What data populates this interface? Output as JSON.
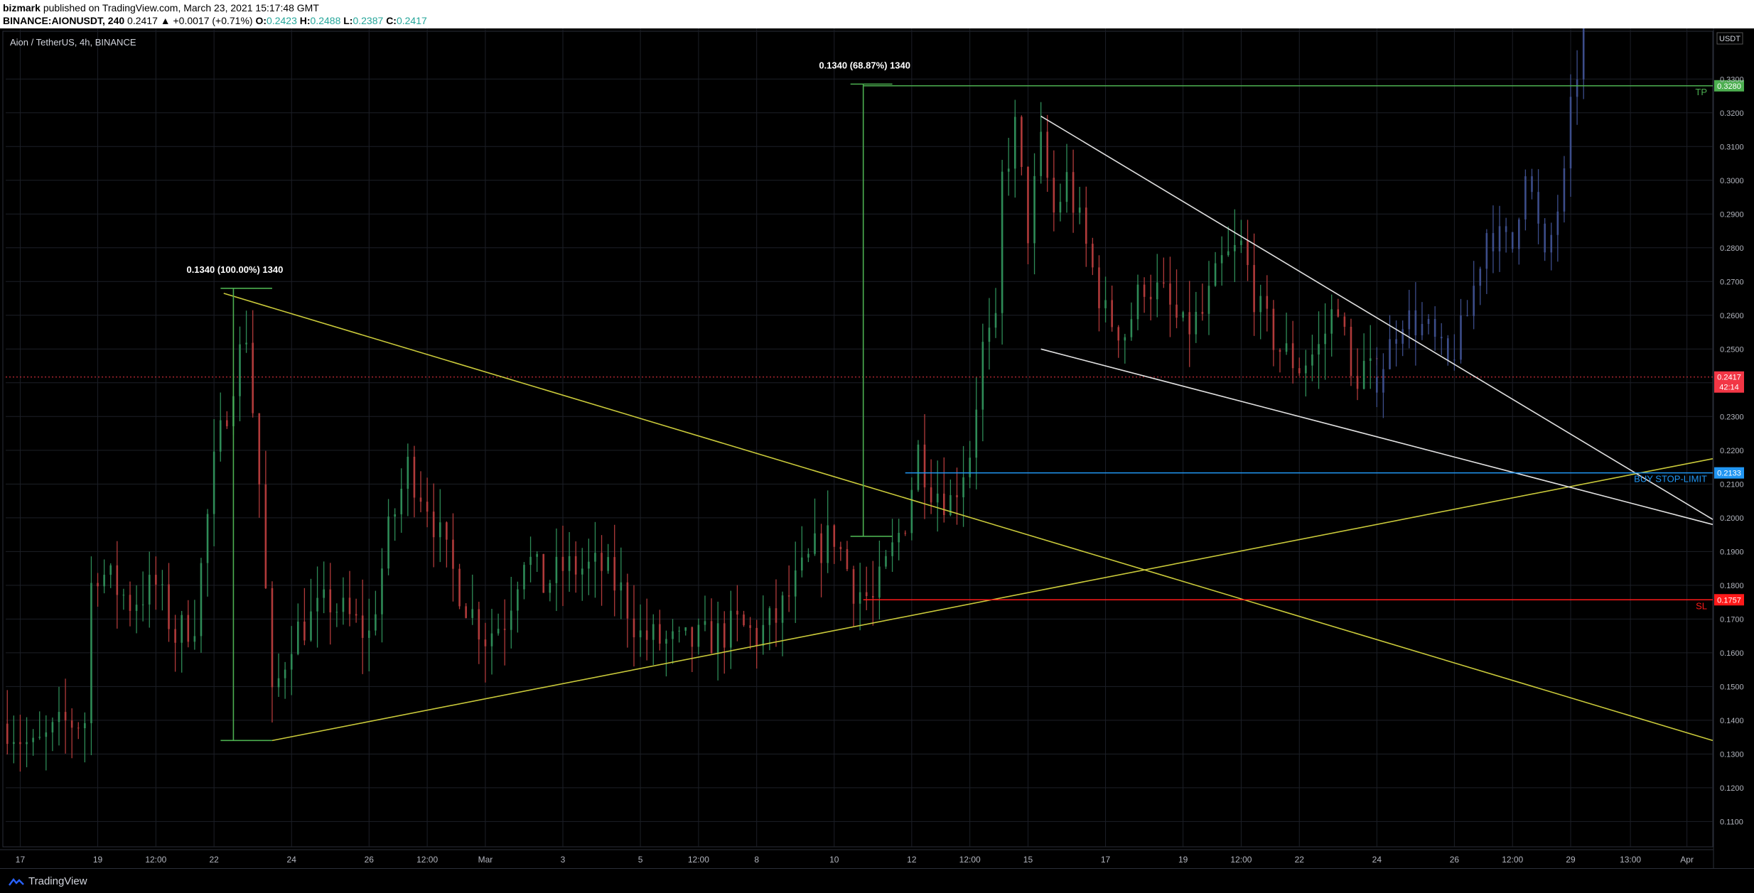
{
  "header": {
    "author": "bizmark",
    "published": "published on TradingView.com, March 23, 2021 15:17:48 GMT",
    "symbol": "BINANCE:AIONUSDT, 240",
    "change": "0.2417 ▲ +0.0017 (+0.71%)",
    "o_label": "O:",
    "o_value": "0.2423",
    "h_label": "H:",
    "h_value": "0.2488",
    "l_label": "L:",
    "l_value": "0.2387",
    "c_label": "C:",
    "c_value": "0.2417"
  },
  "footer": {
    "brand": "TradingView"
  },
  "chart_data": {
    "type": "candlestick",
    "title": "Aion / TetherUS, 4h, BINANCE",
    "currency": "USDT",
    "ylim": [
      0.1025,
      0.345
    ],
    "y_ticks": [
      "0.1100",
      "0.1200",
      "0.1300",
      "0.1400",
      "0.1500",
      "0.1600",
      "0.1700",
      "0.1800",
      "0.1900",
      "0.2000",
      "0.2100",
      "0.2200",
      "0.2300",
      "0.2400",
      "0.2500",
      "0.2600",
      "0.2700",
      "0.2800",
      "0.2900",
      "0.3000",
      "0.3100",
      "0.3200",
      "0.3300"
    ],
    "y_tick_values": [
      0.11,
      0.12,
      0.13,
      0.14,
      0.15,
      0.16,
      0.17,
      0.18,
      0.19,
      0.2,
      0.21,
      0.22,
      0.23,
      0.24,
      0.25,
      0.26,
      0.27,
      0.28,
      0.29,
      0.3,
      0.31,
      0.32,
      0.33
    ],
    "x_range": [
      "2021-02-16 15:00",
      "2021-04-01 16:00"
    ],
    "x_ticks": [
      {
        "label": "17",
        "t": "2021-02-17 00:00"
      },
      {
        "label": "19",
        "t": "2021-02-19 00:00"
      },
      {
        "label": "12:00",
        "t": "2021-02-20 12:00"
      },
      {
        "label": "22",
        "t": "2021-02-22 00:00"
      },
      {
        "label": "24",
        "t": "2021-02-24 00:00"
      },
      {
        "label": "26",
        "t": "2021-02-26 00:00"
      },
      {
        "label": "12:00",
        "t": "2021-02-27 12:00"
      },
      {
        "label": "Mar",
        "t": "2021-03-01 00:00"
      },
      {
        "label": "3",
        "t": "2021-03-03 00:00"
      },
      {
        "label": "5",
        "t": "2021-03-05 00:00"
      },
      {
        "label": "12:00",
        "t": "2021-03-06 12:00"
      },
      {
        "label": "8",
        "t": "2021-03-08 00:00"
      },
      {
        "label": "10",
        "t": "2021-03-10 00:00"
      },
      {
        "label": "12",
        "t": "2021-03-12 00:00"
      },
      {
        "label": "12:00",
        "t": "2021-03-13 12:00"
      },
      {
        "label": "15",
        "t": "2021-03-15 00:00"
      },
      {
        "label": "17",
        "t": "2021-03-17 00:00"
      },
      {
        "label": "19",
        "t": "2021-03-19 00:00"
      },
      {
        "label": "12:00",
        "t": "2021-03-20 12:00"
      },
      {
        "label": "22",
        "t": "2021-03-22 00:00"
      },
      {
        "label": "24",
        "t": "2021-03-24 00:00"
      },
      {
        "label": "26",
        "t": "2021-03-26 00:00"
      },
      {
        "label": "12:00",
        "t": "2021-03-27 12:00"
      },
      {
        "label": "29",
        "t": "2021-03-29 00:00"
      },
      {
        "label": "13:00",
        "t": "2021-03-30 13:00"
      },
      {
        "label": "Apr",
        "t": "2021-04-01 00:00"
      }
    ],
    "price_path": [
      [
        "2021-02-16 16:00",
        0.139
      ],
      [
        "2021-02-17 08:00",
        0.131
      ],
      [
        "2021-02-18 04:00",
        0.139
      ],
      [
        "2021-02-18 16:00",
        0.14
      ],
      [
        "2021-02-18 20:00",
        0.18
      ],
      [
        "2021-02-19 00:00",
        0.185
      ],
      [
        "2021-02-19 20:00",
        0.175
      ],
      [
        "2021-02-20 12:00",
        0.18
      ],
      [
        "2021-02-21 00:00",
        0.165
      ],
      [
        "2021-02-21 12:00",
        0.17
      ],
      [
        "2021-02-22 00:00",
        0.215
      ],
      [
        "2021-02-22 12:00",
        0.242
      ],
      [
        "2021-02-22 20:00",
        0.255
      ],
      [
        "2021-02-23 04:00",
        0.21
      ],
      [
        "2021-02-23 12:00",
        0.145
      ],
      [
        "2021-02-24 00:00",
        0.165
      ],
      [
        "2021-02-25 00:00",
        0.175
      ],
      [
        "2021-02-25 12:00",
        0.17
      ],
      [
        "2021-02-26 00:00",
        0.165
      ],
      [
        "2021-02-26 12:00",
        0.195
      ],
      [
        "2021-02-27 00:00",
        0.215
      ],
      [
        "2021-02-27 12:00",
        0.205
      ],
      [
        "2021-02-28 00:00",
        0.188
      ],
      [
        "2021-02-28 12:00",
        0.175
      ],
      [
        "2021-03-01 00:00",
        0.165
      ],
      [
        "2021-03-01 12:00",
        0.17
      ],
      [
        "2021-03-02 00:00",
        0.19
      ],
      [
        "2021-03-02 12:00",
        0.18
      ],
      [
        "2021-03-03 00:00",
        0.185
      ],
      [
        "2021-03-04 00:00",
        0.185
      ],
      [
        "2021-03-04 12:00",
        0.178
      ],
      [
        "2021-03-05 00:00",
        0.165
      ],
      [
        "2021-03-06 00:00",
        0.162
      ],
      [
        "2021-03-07 00:00",
        0.165
      ],
      [
        "2021-03-07 12:00",
        0.168
      ],
      [
        "2021-03-08 00:00",
        0.165
      ],
      [
        "2021-03-08 12:00",
        0.17
      ],
      [
        "2021-03-09 00:00",
        0.18
      ],
      [
        "2021-03-09 12:00",
        0.19
      ],
      [
        "2021-03-10 00:00",
        0.195
      ],
      [
        "2021-03-10 12:00",
        0.18
      ],
      [
        "2021-03-11 00:00",
        0.175
      ],
      [
        "2021-03-11 08:00",
        0.185
      ],
      [
        "2021-03-11 20:00",
        0.2
      ],
      [
        "2021-03-12 04:00",
        0.22
      ],
      [
        "2021-03-12 12:00",
        0.21
      ],
      [
        "2021-03-13 00:00",
        0.205
      ],
      [
        "2021-03-13 12:00",
        0.22
      ],
      [
        "2021-03-13 20:00",
        0.25
      ],
      [
        "2021-03-14 04:00",
        0.255
      ],
      [
        "2021-03-14 08:00",
        0.3
      ],
      [
        "2021-03-14 16:00",
        0.315
      ],
      [
        "2021-03-15 00:00",
        0.285
      ],
      [
        "2021-03-15 08:00",
        0.31
      ],
      [
        "2021-03-15 16:00",
        0.29
      ],
      [
        "2021-03-16 00:00",
        0.3
      ],
      [
        "2021-03-16 12:00",
        0.28
      ],
      [
        "2021-03-17 00:00",
        0.26
      ],
      [
        "2021-03-17 12:00",
        0.255
      ],
      [
        "2021-03-18 00:00",
        0.27
      ],
      [
        "2021-03-18 12:00",
        0.265
      ],
      [
        "2021-03-19 00:00",
        0.255
      ],
      [
        "2021-03-19 12:00",
        0.26
      ],
      [
        "2021-03-20 00:00",
        0.275
      ],
      [
        "2021-03-20 12:00",
        0.28
      ],
      [
        "2021-03-21 00:00",
        0.26
      ],
      [
        "2021-03-21 12:00",
        0.25
      ],
      [
        "2021-03-22 00:00",
        0.245
      ],
      [
        "2021-03-22 12:00",
        0.25
      ],
      [
        "2021-03-23 00:00",
        0.265
      ],
      [
        "2021-03-23 08:00",
        0.24
      ],
      [
        "2021-03-23 16:00",
        0.245
      ],
      [
        "2021-03-24 00:00",
        0.2417
      ]
    ],
    "projection": {
      "color": "#3c4d8a",
      "path": [
        [
          "2021-03-24 00:00",
          0.2417
        ],
        [
          "2021-03-24 16:00",
          0.26
        ],
        [
          "2021-03-25 08:00",
          0.255
        ],
        [
          "2021-03-25 20:00",
          0.245
        ],
        [
          "2021-03-26 08:00",
          0.26
        ],
        [
          "2021-03-26 20:00",
          0.285
        ],
        [
          "2021-03-27 12:00",
          0.28
        ],
        [
          "2021-03-27 20:00",
          0.305
        ],
        [
          "2021-03-28 08:00",
          0.275
        ],
        [
          "2021-03-28 20:00",
          0.3
        ],
        [
          "2021-03-29 00:00",
          0.32
        ],
        [
          "2021-03-29 08:00",
          0.345
        ]
      ]
    },
    "horizontal_levels": [
      {
        "name": "TP",
        "price": 0.328,
        "label": "0.3280",
        "text": "TP",
        "color": "#4caf50"
      },
      {
        "name": "buy-stop-limit",
        "price": 0.2133,
        "label": "0.2133",
        "text": "BUY STOP-LIMIT",
        "color": "#2196f3"
      },
      {
        "name": "SL",
        "price": 0.1757,
        "label": "0.1757",
        "text": "SL",
        "color": "#ff1a1a"
      }
    ],
    "current_price": {
      "price": 0.2417,
      "label": "0.2417",
      "countdown": "42:14",
      "color": "#f23645"
    },
    "trendlines": [
      {
        "name": "yellow-upper",
        "color": "#c9c93a",
        "p1": [
          "2021-02-22 06:00",
          0.2665
        ],
        "p2": [
          "2021-04-01 16:00",
          0.134
        ]
      },
      {
        "name": "yellow-lower",
        "color": "#c9c93a",
        "p1": [
          "2021-02-23 12:00",
          0.134
        ],
        "p2": [
          "2021-04-01 16:00",
          0.2175
        ]
      },
      {
        "name": "white-upper",
        "color": "#e0e0e0",
        "p1": [
          "2021-03-15 08:00",
          0.319
        ],
        "p2": [
          "2021-04-01 16:00",
          0.1995
        ]
      },
      {
        "name": "white-lower",
        "color": "#e0e0e0",
        "p1": [
          "2021-03-15 08:00",
          0.25
        ],
        "p2": [
          "2021-04-01 16:00",
          0.198
        ]
      }
    ],
    "measurements": [
      {
        "name": "measure-100pct",
        "label": "0.1340 (100.00%) 1340",
        "x": "2021-02-22 12:00",
        "x_end": "2021-02-23 12:00",
        "from": 0.134,
        "to": 0.268,
        "color": "#4caf50"
      },
      {
        "name": "measure-68pct",
        "label": "0.1340 (68.87%) 1340",
        "x": "2021-03-10 18:00",
        "x_end": "2021-03-11 12:00",
        "from": 0.1945,
        "to": 0.3285,
        "color": "#4caf50"
      }
    ]
  }
}
